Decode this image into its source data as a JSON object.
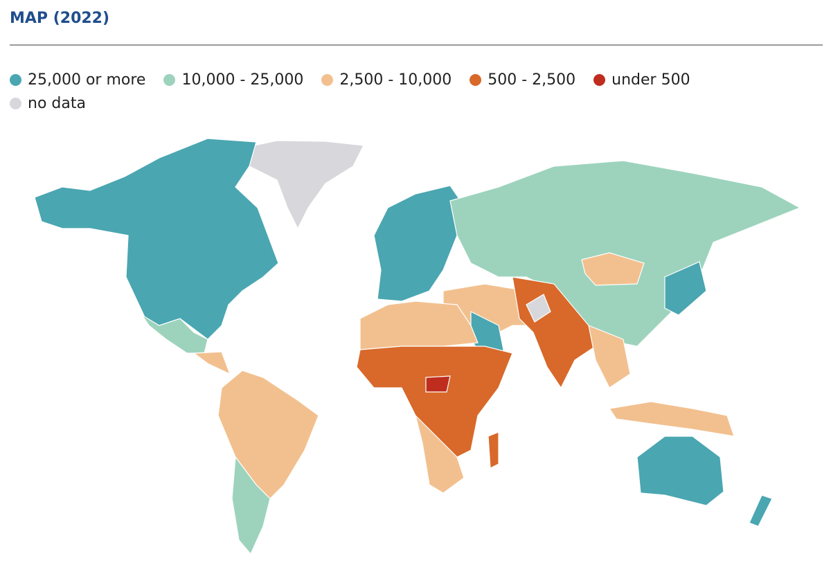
{
  "title": "MAP (2022)",
  "legend": [
    {
      "label": "25,000 or more",
      "color": "#4aa6b1",
      "key": "c1"
    },
    {
      "label": "10,000 - 25,000",
      "color": "#9dd3bd",
      "key": "c2"
    },
    {
      "label": "2,500 - 10,000",
      "color": "#f2c08f",
      "key": "c3"
    },
    {
      "label": "500 - 2,500",
      "color": "#d8692a",
      "key": "c4"
    },
    {
      "label": "under 500",
      "color": "#bf2d1f",
      "key": "c5"
    },
    {
      "label": "no data",
      "color": "#d8d8dc",
      "key": "nd"
    }
  ],
  "regions": [
    {
      "name": "Greenland",
      "category": "nd"
    },
    {
      "name": "North America",
      "category": "c1"
    },
    {
      "name": "Mexico",
      "category": "c2"
    },
    {
      "name": "Central America",
      "category": "c3"
    },
    {
      "name": "South America",
      "category": "c3"
    },
    {
      "name": "Southern Cone",
      "category": "c2"
    },
    {
      "name": "Western Europe",
      "category": "c1"
    },
    {
      "name": "Russia and Central Asia",
      "category": "c2"
    },
    {
      "name": "Mongolia",
      "category": "c3"
    },
    {
      "name": "Japan",
      "category": "c1"
    },
    {
      "name": "Middle East",
      "category": "c3"
    },
    {
      "name": "Saudi Arabia",
      "category": "c1"
    },
    {
      "name": "South Asia",
      "category": "c4"
    },
    {
      "name": "Afghanistan",
      "category": "nd"
    },
    {
      "name": "Southeast Asia",
      "category": "c3"
    },
    {
      "name": "Indonesia",
      "category": "c3"
    },
    {
      "name": "North Africa",
      "category": "c3"
    },
    {
      "name": "Sub-Saharan Africa",
      "category": "c4"
    },
    {
      "name": "Southern Africa",
      "category": "c3"
    },
    {
      "name": "Central African Republic",
      "category": "c5"
    },
    {
      "name": "Madagascar",
      "category": "c4"
    },
    {
      "name": "Australia",
      "category": "c1"
    },
    {
      "name": "New Zealand",
      "category": "c1"
    }
  ]
}
